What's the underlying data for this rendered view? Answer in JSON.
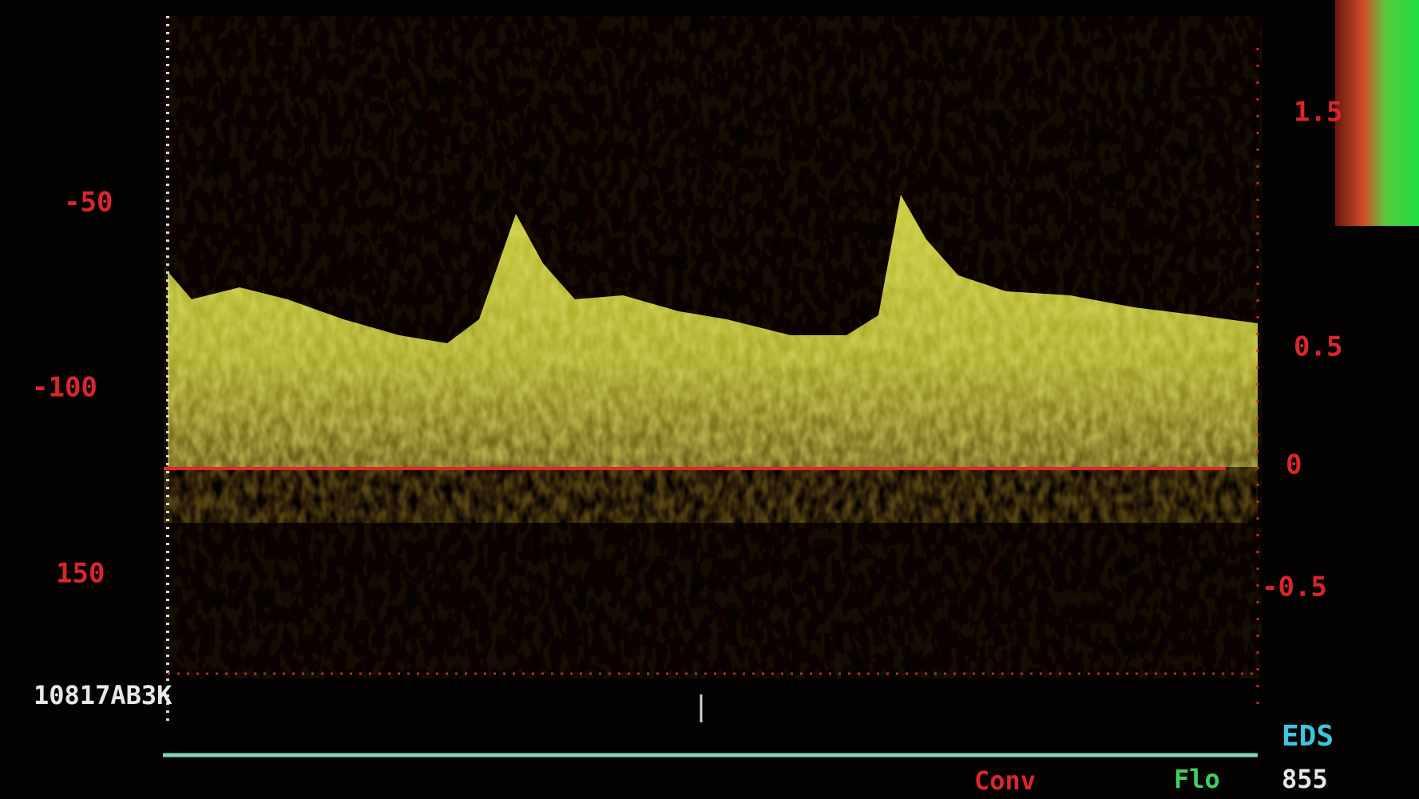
{
  "left_scale": [
    "-50",
    "-100",
    "150"
  ],
  "right_scale": [
    "1.5",
    "0.5",
    "0",
    "-0.5"
  ],
  "device_label": "10817AB3K",
  "mode_label": "EDS",
  "status": {
    "left": "Conv",
    "flow": "Flo",
    "value": "855"
  }
}
